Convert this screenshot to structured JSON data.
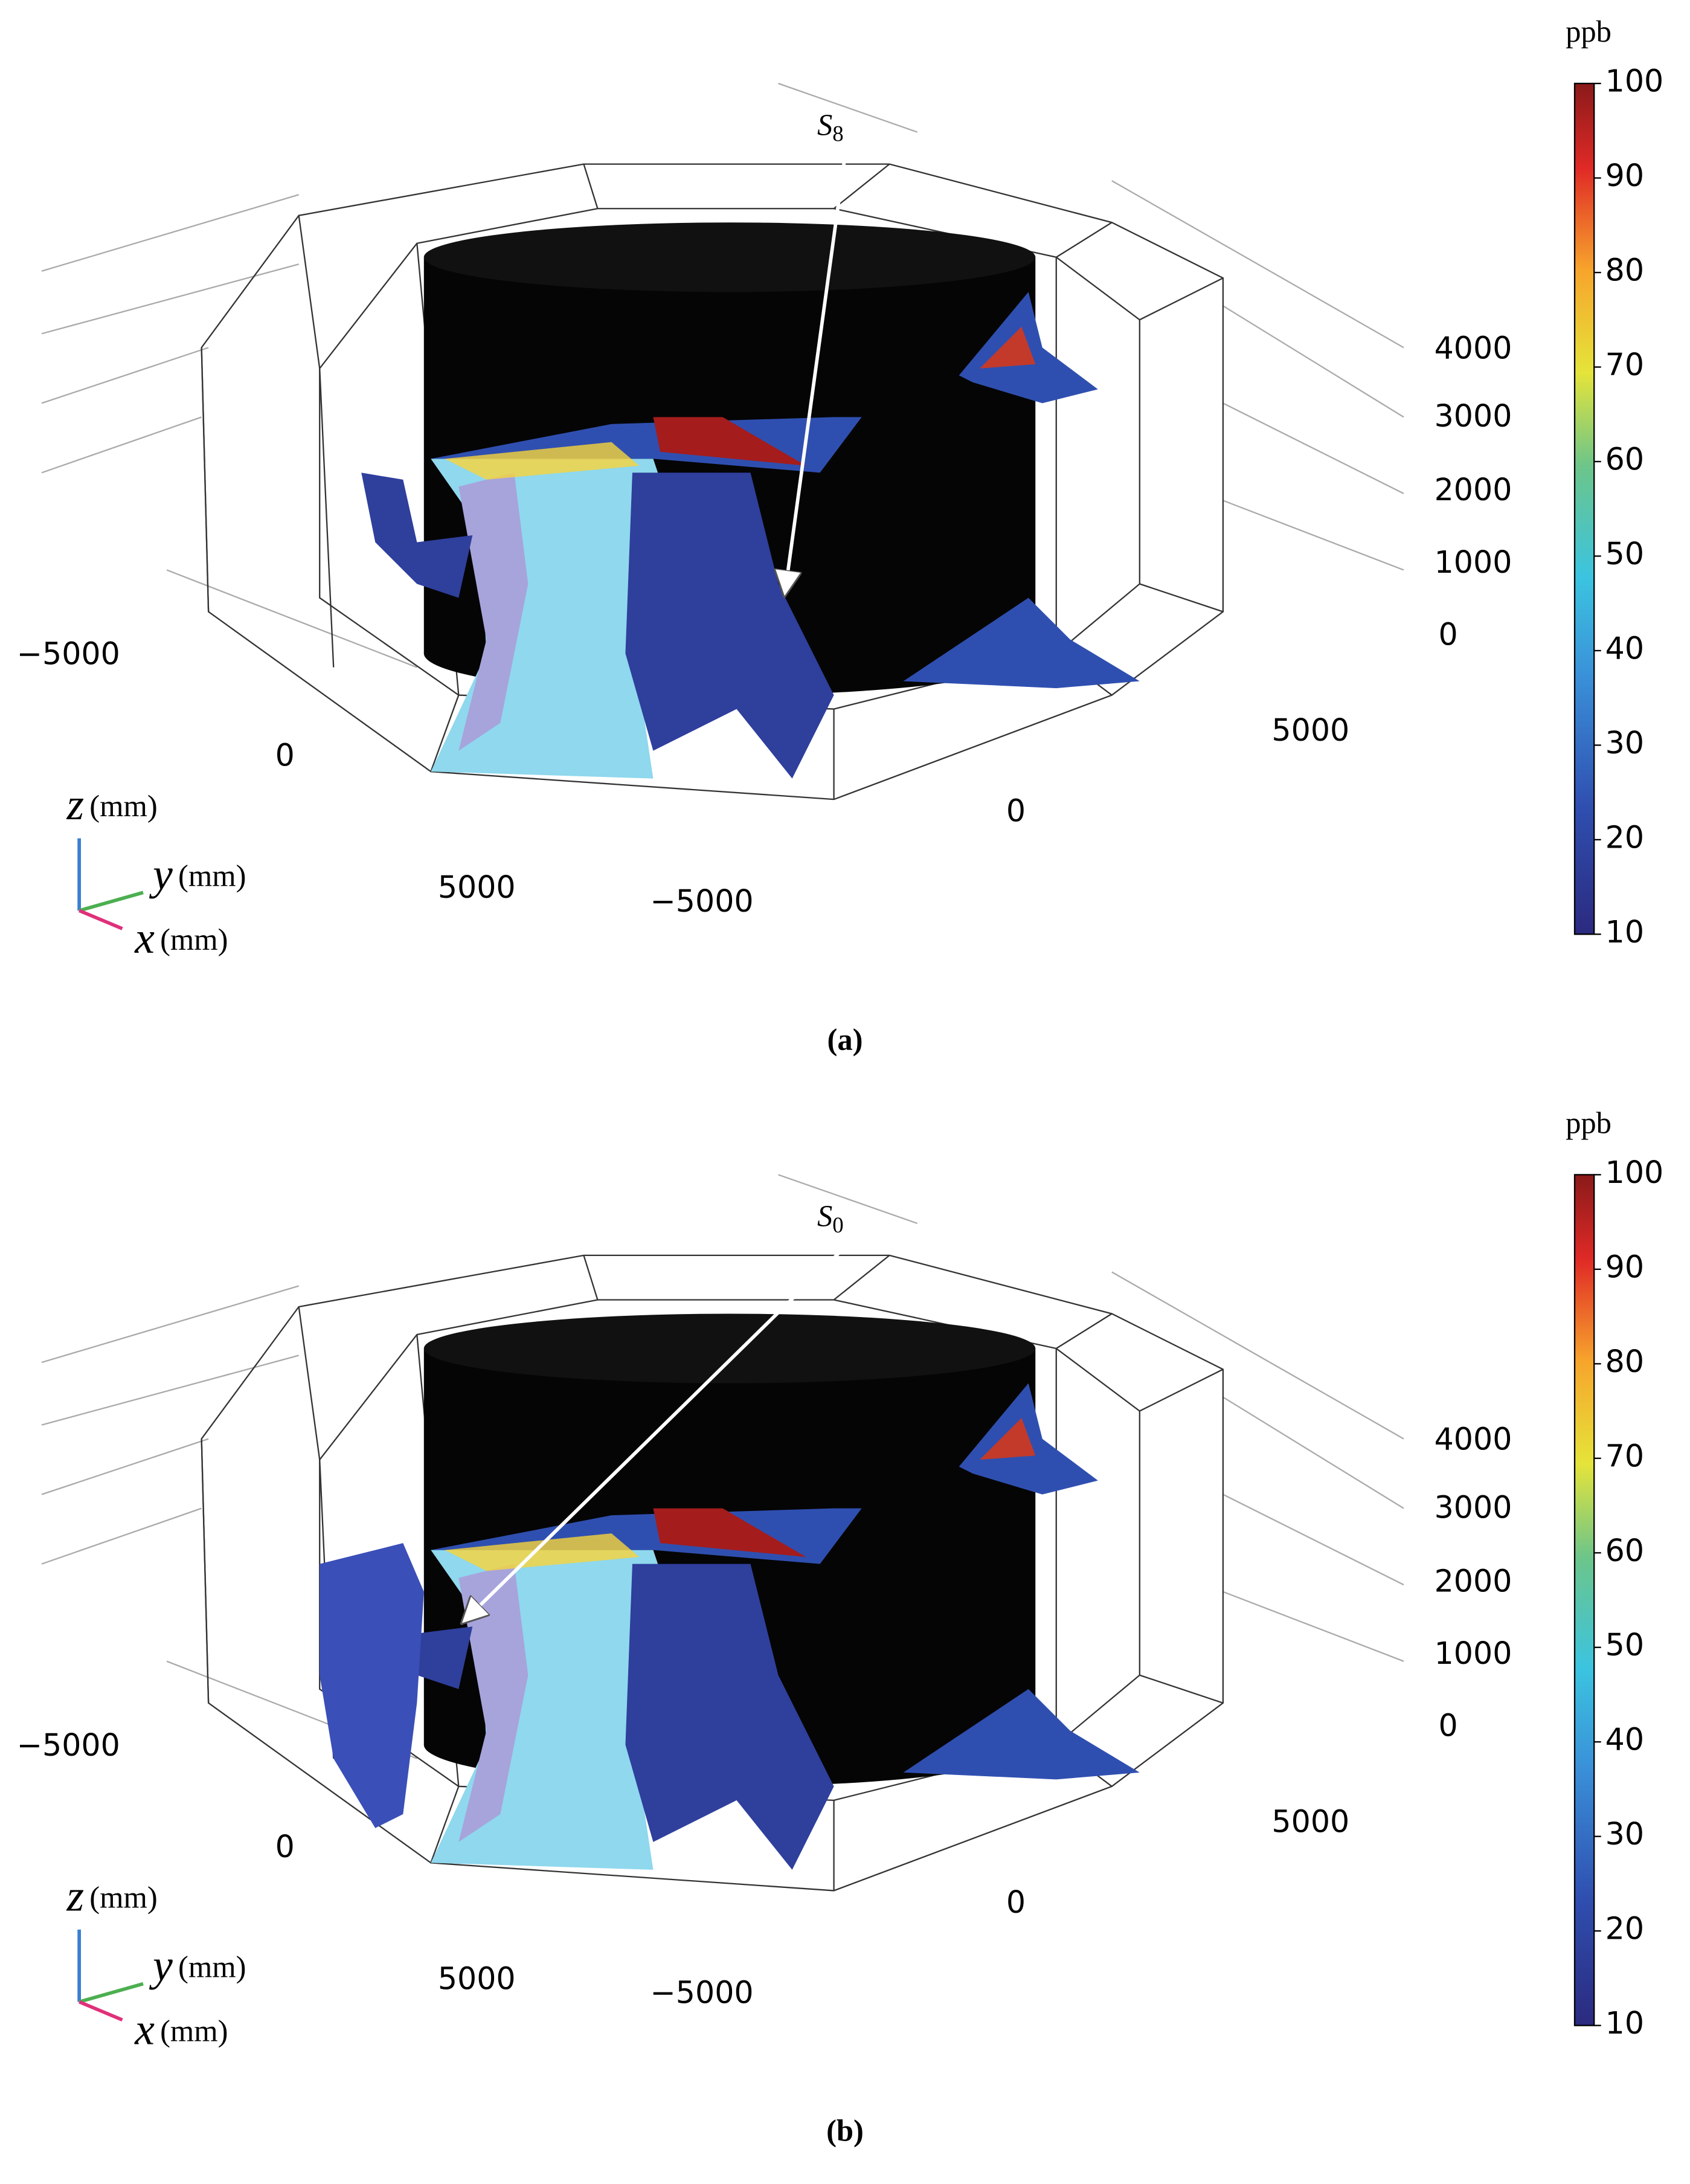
{
  "panels": [
    {
      "label": "(a)",
      "annotation": {
        "base": "S",
        "sub": "8"
      },
      "colorbar": {
        "unit": "ppb",
        "ticks": [
          "100",
          "90",
          "80",
          "70",
          "60",
          "50",
          "40",
          "30",
          "20",
          "10"
        ]
      },
      "z_ticks": [
        "4000",
        "3000",
        "2000",
        "1000",
        "0"
      ],
      "x_ticks": [
        "−5000",
        "0",
        "5000"
      ],
      "y_ticks": [
        "−5000",
        "0",
        "5000"
      ],
      "axes": {
        "z": "z",
        "y": "y",
        "x": "x",
        "unit": "(mm)"
      }
    },
    {
      "label": "(b)",
      "annotation": {
        "base": "S",
        "sub": "0"
      },
      "colorbar": {
        "unit": "ppb",
        "ticks": [
          "100",
          "90",
          "80",
          "70",
          "60",
          "50",
          "40",
          "30",
          "20",
          "10"
        ]
      },
      "z_ticks": [
        "4000",
        "3000",
        "2000",
        "1000",
        "0"
      ],
      "x_ticks": [
        "−5000",
        "0",
        "5000"
      ],
      "y_ticks": [
        "−5000",
        "0",
        "5000"
      ],
      "axes": {
        "z": "z",
        "y": "y",
        "x": "x",
        "unit": "(mm)"
      }
    }
  ]
}
